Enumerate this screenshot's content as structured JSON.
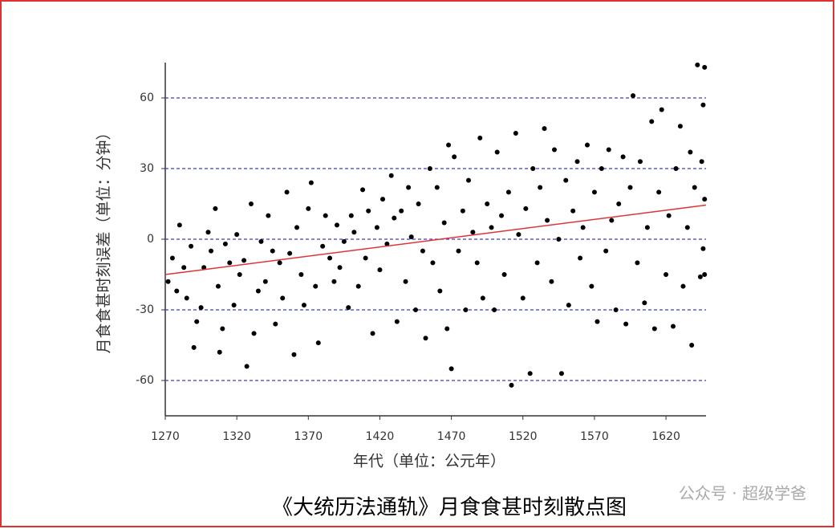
{
  "chart_data": {
    "type": "scatter",
    "title": "《大统历法通轨》月食食甚时刻散点图",
    "xlabel": "年代（单位：公元年）",
    "ylabel": "月食食甚时刻误差（单位：分钟）",
    "watermark": "公众号 · 超级学爸",
    "xlim": [
      1270,
      1648
    ],
    "ylim": [
      -75,
      75
    ],
    "xticks": [
      1270,
      1320,
      1370,
      1420,
      1470,
      1520,
      1570,
      1620
    ],
    "yticks": [
      -60,
      -30,
      0,
      30,
      60
    ],
    "grid": true,
    "grid_color": "#3b3bd6",
    "color": "#000000",
    "trend": {
      "x": [
        1270,
        1648
      ],
      "y": [
        -15,
        14.5
      ],
      "color": "#e03434"
    },
    "x": [
      1272,
      1275,
      1278,
      1280,
      1283,
      1285,
      1288,
      1290,
      1292,
      1295,
      1297,
      1300,
      1302,
      1305,
      1307,
      1308,
      1310,
      1312,
      1315,
      1318,
      1320,
      1322,
      1325,
      1327,
      1330,
      1332,
      1335,
      1337,
      1340,
      1342,
      1345,
      1347,
      1350,
      1352,
      1355,
      1357,
      1360,
      1362,
      1365,
      1367,
      1370,
      1372,
      1375,
      1377,
      1380,
      1382,
      1385,
      1388,
      1390,
      1392,
      1395,
      1398,
      1400,
      1402,
      1405,
      1408,
      1410,
      1412,
      1415,
      1418,
      1420,
      1422,
      1425,
      1428,
      1430,
      1432,
      1435,
      1438,
      1440,
      1442,
      1445,
      1447,
      1450,
      1452,
      1455,
      1457,
      1460,
      1462,
      1465,
      1467,
      1468,
      1470,
      1472,
      1475,
      1478,
      1480,
      1482,
      1485,
      1488,
      1490,
      1492,
      1495,
      1498,
      1500,
      1502,
      1505,
      1507,
      1510,
      1512,
      1515,
      1517,
      1520,
      1522,
      1525,
      1527,
      1530,
      1532,
      1535,
      1537,
      1540,
      1542,
      1545,
      1547,
      1550,
      1552,
      1555,
      1558,
      1560,
      1562,
      1565,
      1568,
      1570,
      1572,
      1575,
      1578,
      1580,
      1582,
      1585,
      1587,
      1590,
      1592,
      1595,
      1597,
      1600,
      1602,
      1605,
      1607,
      1610,
      1612,
      1615,
      1617,
      1620,
      1622,
      1625,
      1627,
      1630,
      1632,
      1635,
      1637,
      1638,
      1640,
      1642,
      1644,
      1645,
      1646,
      1647,
      1646,
      1647,
      1647
    ],
    "values": [
      -18,
      -8,
      -22,
      6,
      -12,
      -25,
      -3,
      -46,
      -35,
      -29,
      -12,
      3,
      -5,
      13,
      -20,
      -48,
      -38,
      -2,
      -10,
      -28,
      2,
      -15,
      -9,
      -54,
      15,
      -40,
      -22,
      -1,
      -18,
      10,
      -5,
      -36,
      -10,
      -25,
      20,
      -6,
      -49,
      5,
      -15,
      -28,
      13,
      24,
      -20,
      -44,
      -3,
      10,
      -8,
      -18,
      6,
      -12,
      -1,
      -29,
      10,
      3,
      -20,
      21,
      -8,
      12,
      -40,
      5,
      -13,
      17,
      -2,
      27,
      9,
      -35,
      12,
      -18,
      22,
      1,
      -30,
      15,
      -5,
      -42,
      30,
      -10,
      22,
      -22,
      7,
      -38,
      40,
      -55,
      35,
      -5,
      12,
      -30,
      25,
      3,
      -10,
      43,
      -25,
      15,
      5,
      -30,
      37,
      10,
      -15,
      20,
      -62,
      45,
      2,
      -25,
      13,
      -57,
      30,
      -10,
      22,
      47,
      8,
      -18,
      38,
      0,
      -57,
      25,
      -28,
      12,
      33,
      -8,
      5,
      40,
      -20,
      20,
      -35,
      30,
      -5,
      38,
      8,
      -30,
      15,
      35,
      -36,
      22,
      61,
      -10,
      33,
      -27,
      5,
      50,
      -38,
      20,
      55,
      -15,
      10,
      -37,
      30,
      48,
      -20,
      5,
      37,
      -45,
      22,
      74,
      -16,
      33,
      -4,
      73,
      57,
      -15,
      17
    ]
  }
}
